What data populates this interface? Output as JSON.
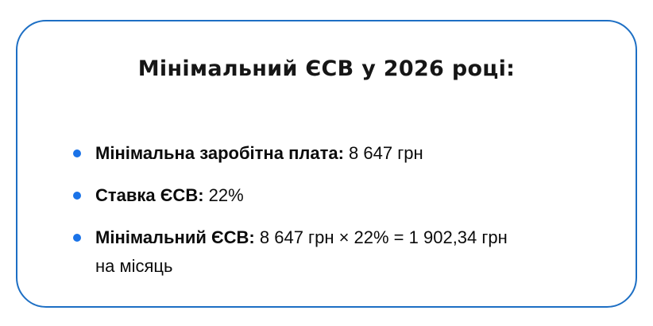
{
  "colors": {
    "border": "#1d6fc4",
    "bullet": "#1a73e8",
    "title_text": "#161616",
    "body_text": "#0b0b0b"
  },
  "card": {
    "title": "Мінімальний ЄСВ у 2026 році:",
    "items": [
      {
        "label": "Мінімальна заробітна плата:",
        "value": "8 647 грн"
      },
      {
        "label": "Ставка ЄСВ:",
        "value": "22%"
      },
      {
        "label": "Мінімальний ЄСВ:",
        "value": "8 647 грн × 22% = 1 902,34 грн\nна місяць"
      }
    ]
  }
}
